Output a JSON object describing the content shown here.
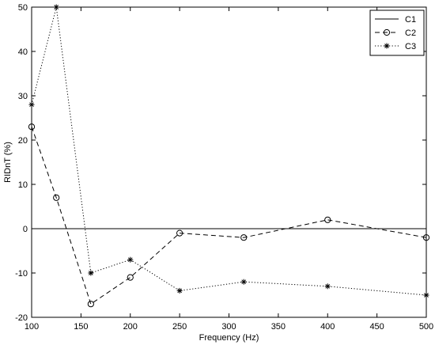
{
  "chart_data": {
    "type": "line",
    "title": "",
    "xlabel": "Frequency (Hz)",
    "ylabel": "RIDnT (%)",
    "xlim": [
      100,
      500
    ],
    "ylim": [
      -20,
      50
    ],
    "xticks": [
      100,
      150,
      200,
      250,
      300,
      350,
      400,
      450,
      500
    ],
    "yticks": [
      -20,
      -10,
      0,
      10,
      20,
      30,
      40,
      50
    ],
    "grid": false,
    "legend_position": "top-right",
    "series": [
      {
        "name": "C1",
        "style": "solid",
        "marker": "none",
        "color": "#000000",
        "x": [
          100,
          500
        ],
        "y": [
          0,
          0
        ]
      },
      {
        "name": "C2",
        "style": "dashed",
        "marker": "circle",
        "color": "#000000",
        "x": [
          100,
          125,
          160,
          200,
          250,
          315,
          400,
          500
        ],
        "y": [
          23,
          7,
          -17,
          -11,
          -1,
          -2,
          2,
          -2
        ]
      },
      {
        "name": "C3",
        "style": "dotted",
        "marker": "star",
        "color": "#000000",
        "x": [
          100,
          125,
          160,
          200,
          250,
          315,
          400,
          500
        ],
        "y": [
          28,
          50,
          -10,
          -7,
          -14,
          -12,
          -13,
          -15
        ]
      }
    ]
  }
}
